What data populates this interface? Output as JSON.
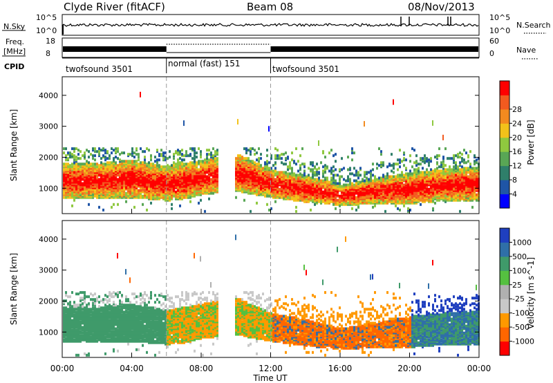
{
  "header": {
    "station": "Clyde River (fitACF)",
    "beam": "Beam 08",
    "date": "08/Nov/2013"
  },
  "nsky": {
    "label": "N.Sky",
    "ticks": [
      "10^5",
      "10^0"
    ],
    "right_ticks": [
      "10^5",
      "10^0"
    ],
    "right_label": "N.Search"
  },
  "freq": {
    "label_top": "Freq.",
    "label_bottom": "[MHz]",
    "ticks": [
      "18",
      "8"
    ],
    "right_ticks": [
      "60",
      "0"
    ],
    "right_label": "Nave"
  },
  "cpid": {
    "label": "CPID",
    "segments": [
      {
        "name": "twofsound 3501",
        "start": 0,
        "end": 6
      },
      {
        "name": "normal (fast) 151",
        "start": 6,
        "end": 12
      },
      {
        "name": "twofsound 3501",
        "start": 12,
        "end": 24
      }
    ]
  },
  "colors": {
    "power": [
      "#0000ff",
      "#1f55a6",
      "#2f7f6a",
      "#59a655",
      "#8fc83f",
      "#f2c21a",
      "#f28a1f",
      "#f25a1f",
      "#ff0000"
    ],
    "velocity": [
      "#ff0000",
      "#ff6600",
      "#ff9900",
      "#c8c8c8",
      "#b0b0b0",
      "#55c040",
      "#3f9a6a",
      "#2f6fa8",
      "#1f3fbf"
    ]
  },
  "chart_data": [
    {
      "type": "heatmap",
      "title": "Power",
      "xlabel": "Time UT",
      "ylabel": "Slant Range [km]",
      "xlim": [
        0,
        24
      ],
      "ylim": [
        180,
        4600
      ],
      "x_ticks": [
        "00:00",
        "04:00",
        "08:00",
        "12:00",
        "16:00",
        "20:00",
        "00:00"
      ],
      "y_ticks": [
        1000,
        2000,
        3000,
        4000
      ],
      "colorbar": {
        "label": "Power [dB]",
        "ticks": [
          "4",
          "8",
          "12",
          "16",
          "20",
          "24",
          "28"
        ]
      },
      "main_echo_band_range_km": [
        [
          0,
          700,
          1800
        ],
        [
          2,
          700,
          1800
        ],
        [
          4,
          700,
          1900
        ],
        [
          6,
          600,
          1700
        ],
        [
          7,
          650,
          1800
        ],
        [
          8,
          800,
          1900
        ],
        [
          10,
          900,
          2100
        ],
        [
          12,
          700,
          1600
        ],
        [
          14,
          550,
          1400
        ],
        [
          16,
          450,
          1100
        ],
        [
          18,
          500,
          1300
        ],
        [
          20,
          500,
          1500
        ],
        [
          22,
          600,
          1600
        ],
        [
          24,
          600,
          1700
        ]
      ]
    },
    {
      "type": "heatmap",
      "title": "Velocity",
      "xlabel": "Time UT",
      "ylabel": "Slant Range [km]",
      "xlim": [
        0,
        24
      ],
      "ylim": [
        180,
        4600
      ],
      "x_ticks": [
        "00:00",
        "04:00",
        "08:00",
        "12:00",
        "16:00",
        "20:00",
        "00:00"
      ],
      "y_ticks": [
        1000,
        2000,
        3000,
        4000
      ],
      "colorbar": {
        "label": "Velocity [m s^-1]",
        "ticks": [
          "1000",
          "500",
          "100",
          "25",
          "-25",
          "-100",
          "-500",
          "-1000"
        ]
      },
      "main_echo_band_range_km": [
        [
          0,
          700,
          1800
        ],
        [
          2,
          700,
          1800
        ],
        [
          4,
          700,
          1900
        ],
        [
          6,
          600,
          1700
        ],
        [
          7,
          650,
          1800
        ],
        [
          8,
          800,
          1900
        ],
        [
          10,
          900,
          2100
        ],
        [
          12,
          700,
          1600
        ],
        [
          14,
          550,
          1400
        ],
        [
          16,
          450,
          1100
        ],
        [
          18,
          500,
          1300
        ],
        [
          20,
          500,
          1500
        ],
        [
          22,
          600,
          1600
        ],
        [
          24,
          600,
          1700
        ]
      ]
    }
  ]
}
